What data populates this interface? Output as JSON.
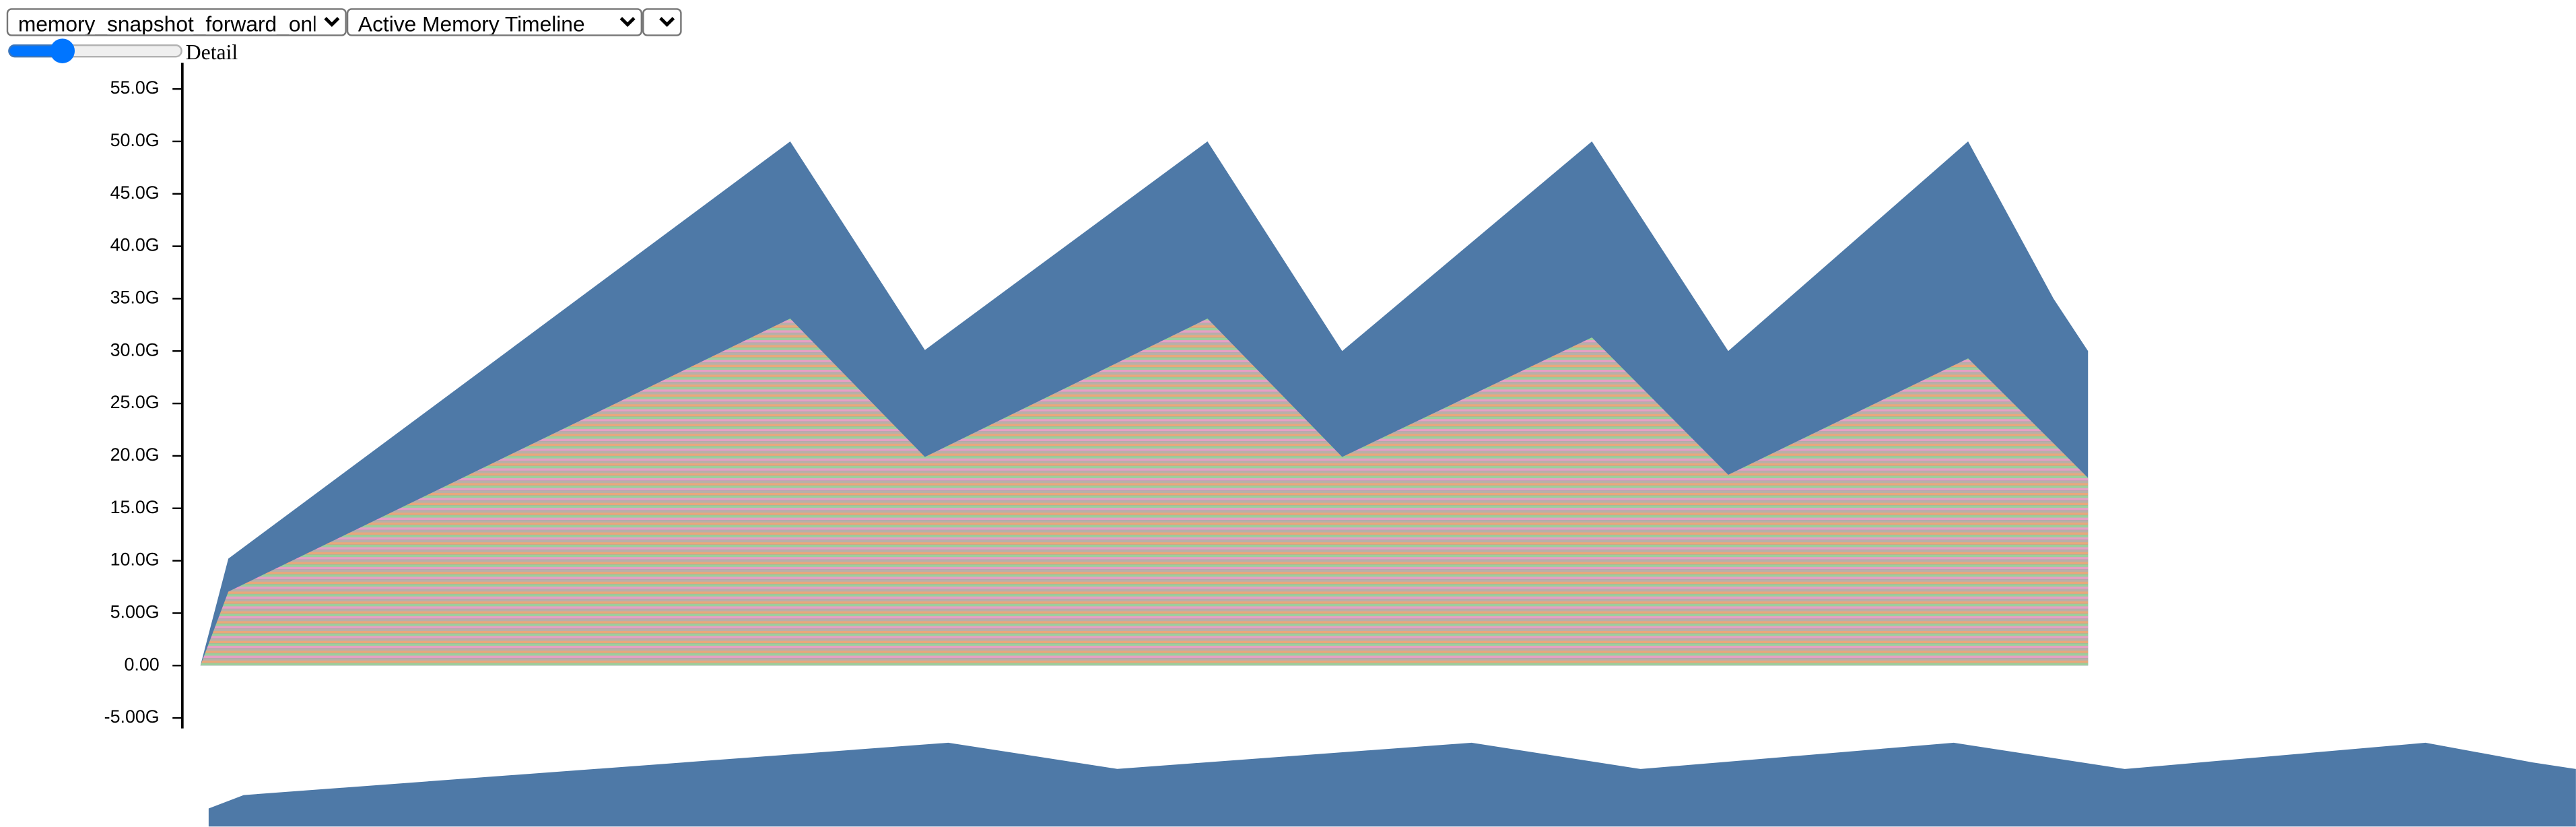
{
  "controls": {
    "file_select": "memory_snapshot_forward_only.pickle",
    "view_select": "Active Memory Timeline",
    "index_select": "0",
    "slider_label": "Detail"
  },
  "chart_data": {
    "type": "area",
    "x": [
      0,
      17,
      359,
      441,
      613,
      695,
      847,
      930,
      1076,
      1128,
      1149
    ],
    "series": [
      {
        "color": "#4e79a7",
        "values": [
          0,
          10.2,
          50,
          30.1,
          50,
          30,
          50,
          30,
          50,
          35,
          30
        ]
      },
      {
        "values": [
          0,
          7.05,
          33.1,
          19.9,
          33.1,
          19.9,
          31.3,
          18.2,
          29.3,
          21.2,
          17.9
        ]
      }
    ],
    "xlim": [
      0,
      1149
    ],
    "ylim": [
      -6,
      57.5
    ],
    "yticks": [
      {
        "value": -5,
        "label": "-5.00G"
      },
      {
        "value": 0,
        "label": "0.00"
      },
      {
        "value": 5,
        "label": "5.00G"
      },
      {
        "value": 10,
        "label": "10.0G"
      },
      {
        "value": 15,
        "label": "15.0G"
      },
      {
        "value": 20,
        "label": "20.0G"
      },
      {
        "value": 25,
        "label": "25.0G"
      },
      {
        "value": 30,
        "label": "30.0G"
      },
      {
        "value": 35,
        "label": "35.0G"
      },
      {
        "value": 40,
        "label": "40.0G"
      },
      {
        "value": 45,
        "label": "45.0G"
      },
      {
        "value": 50,
        "label": "50.0G"
      },
      {
        "value": 55,
        "label": "55.0G"
      }
    ]
  }
}
